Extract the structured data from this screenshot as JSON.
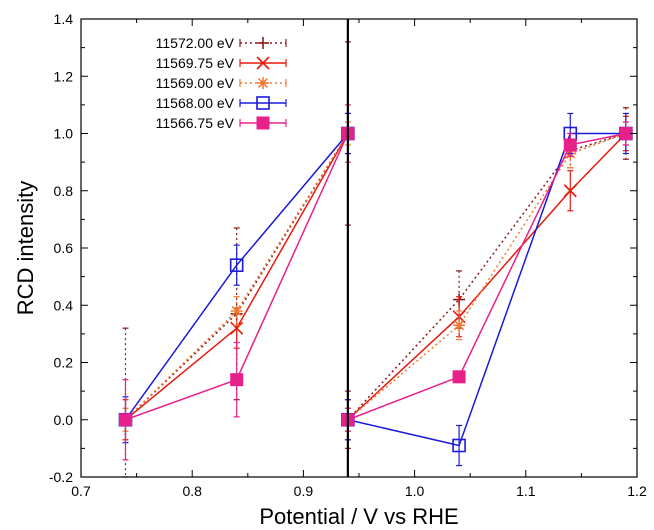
{
  "chart_data": {
    "type": "line",
    "xlabel": "Potential / V vs RHE",
    "ylabel": "RCD intensity",
    "xlim": [
      0.7,
      1.2
    ],
    "ylim": [
      -0.2,
      1.4
    ],
    "xticks": [
      0.7,
      0.8,
      0.9,
      1.0,
      1.1,
      1.2
    ],
    "yticks": [
      -0.2,
      0.0,
      0.2,
      0.4,
      0.6,
      0.8,
      1.0,
      1.2,
      1.4
    ],
    "xtick_labels": [
      "0.7",
      "0.8",
      "0.9",
      "1.0",
      "1.1",
      "1.2"
    ],
    "ytick_labels": [
      "-0.2",
      "0.0",
      "0.2",
      "0.4",
      "0.6",
      "0.8",
      "1.0",
      "1.2",
      "1.4"
    ],
    "divider_x": 0.94,
    "legend_position": "top-left",
    "grid": false,
    "series": [
      {
        "name": "11572.00 eV",
        "color": "#8b1a1a",
        "marker": "plus",
        "dash": "dotted",
        "segments": [
          [
            {
              "x": 0.74,
              "y": 0.0,
              "err": 0.32
            },
            {
              "x": 0.84,
              "y": 0.37,
              "err": 0.3
            },
            {
              "x": 0.94,
              "y": 1.0,
              "err": 0.32
            }
          ],
          [
            {
              "x": 0.94,
              "y": 0.0,
              "err": 0.1
            },
            {
              "x": 1.04,
              "y": 0.42,
              "err": 0.1
            },
            {
              "x": 1.14,
              "y": 0.94,
              "err": 0.06
            },
            {
              "x": 1.19,
              "y": 1.0,
              "err": 0.09
            }
          ]
        ]
      },
      {
        "name": "11569.75 eV",
        "color": "#e8190c",
        "marker": "cross",
        "dash": "solid",
        "segments": [
          [
            {
              "x": 0.74,
              "y": 0.0,
              "err": 0.07
            },
            {
              "x": 0.84,
              "y": 0.32,
              "err": 0.07
            },
            {
              "x": 0.94,
              "y": 1.0,
              "err": 0.07
            }
          ],
          [
            {
              "x": 0.94,
              "y": 0.0,
              "err": 0.07
            },
            {
              "x": 1.04,
              "y": 0.36,
              "err": 0.07
            },
            {
              "x": 1.14,
              "y": 0.8,
              "err": 0.07
            },
            {
              "x": 1.19,
              "y": 1.0,
              "err": 0.06
            }
          ]
        ]
      },
      {
        "name": "11569.00 eV",
        "color": "#f07830",
        "marker": "asterisk",
        "dash": "dotted",
        "segments": [
          [
            {
              "x": 0.74,
              "y": 0.0,
              "err": 0.04
            },
            {
              "x": 0.84,
              "y": 0.38,
              "err": 0.05
            },
            {
              "x": 0.94,
              "y": 1.0,
              "err": 0.04
            }
          ],
          [
            {
              "x": 0.94,
              "y": 0.0,
              "err": 0.04
            },
            {
              "x": 1.04,
              "y": 0.33,
              "err": 0.05
            },
            {
              "x": 1.14,
              "y": 0.93,
              "err": 0.05
            },
            {
              "x": 1.19,
              "y": 1.0,
              "err": 0.04
            }
          ]
        ]
      },
      {
        "name": "11568.00 eV",
        "color": "#1a1adc",
        "marker": "open-square",
        "dash": "solid",
        "segments": [
          [
            {
              "x": 0.74,
              "y": 0.0,
              "err": 0.08
            },
            {
              "x": 0.84,
              "y": 0.54,
              "err": 0.07
            },
            {
              "x": 0.94,
              "y": 1.0,
              "err": 0.07
            }
          ],
          [
            {
              "x": 0.94,
              "y": 0.0,
              "err": 0.07
            },
            {
              "x": 1.04,
              "y": -0.09,
              "err": 0.07
            },
            {
              "x": 1.14,
              "y": 1.0,
              "err": 0.07
            },
            {
              "x": 1.19,
              "y": 1.0,
              "err": 0.07
            }
          ]
        ]
      },
      {
        "name": "11566.75 eV",
        "color": "#e8208a",
        "marker": "filled-square",
        "dash": "solid",
        "segments": [
          [
            {
              "x": 0.74,
              "y": 0.0,
              "err": 0.14
            },
            {
              "x": 0.84,
              "y": 0.14,
              "err": 0.13
            },
            {
              "x": 0.94,
              "y": 1.0,
              "err": 0.1
            }
          ],
          [
            {
              "x": 0.94,
              "y": 0.0,
              "err": 0.04
            },
            {
              "x": 1.04,
              "y": 0.15,
              "err": 0.02
            },
            {
              "x": 1.14,
              "y": 0.96,
              "err": 0.04
            },
            {
              "x": 1.19,
              "y": 1.0,
              "err": 0.04
            }
          ]
        ]
      }
    ]
  }
}
